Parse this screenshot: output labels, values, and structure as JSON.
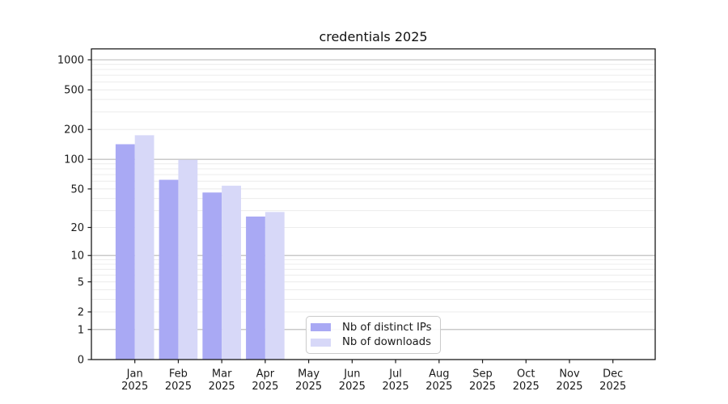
{
  "chart_data": {
    "type": "bar",
    "title": "credentials 2025",
    "scale": "symlog",
    "categories": [
      "Jan",
      "Feb",
      "Mar",
      "Apr",
      "May",
      "Jun",
      "Jul",
      "Aug",
      "Sep",
      "Oct",
      "Nov",
      "Dec"
    ],
    "year_label": "2025",
    "xlabel": "",
    "ylabel": "",
    "y_ticks": [
      0,
      1,
      2,
      5,
      10,
      20,
      50,
      100,
      200,
      500,
      1000
    ],
    "y_minor_ticks": [
      3,
      4,
      6,
      7,
      8,
      9,
      30,
      40,
      60,
      70,
      80,
      90,
      300,
      400,
      600,
      700,
      800,
      900
    ],
    "ylim": [
      0,
      1250
    ],
    "grid": "both",
    "legend_position": "bottom-center-inside",
    "series": [
      {
        "name": "Nb of distinct IPs",
        "color": "#a9a9f4",
        "values": [
          142,
          62,
          46,
          26,
          0,
          0,
          0,
          0,
          0,
          0,
          0,
          0
        ]
      },
      {
        "name": "Nb of downloads",
        "color": "#d7d8f8",
        "values": [
          175,
          99,
          54,
          29,
          0,
          0,
          0,
          0,
          0,
          0,
          0,
          0
        ]
      }
    ]
  },
  "colors": {
    "grid_decade": "#b8b8b8",
    "grid_minor": "#ececec",
    "axis": "#1a1a1a",
    "background": "#ffffff"
  }
}
